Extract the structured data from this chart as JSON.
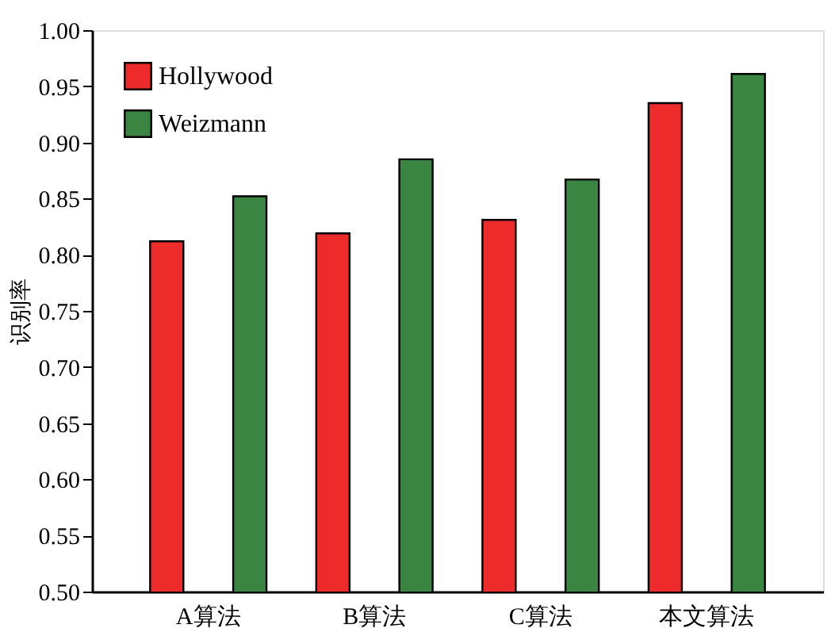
{
  "chart_data": {
    "type": "bar",
    "ylabel": "识别率",
    "categories": [
      "A算法",
      "B算法",
      "C算法",
      "本文算法"
    ],
    "series": [
      {
        "name": "Hollywood",
        "color": "#ee2b2b",
        "values": [
          0.812,
          0.819,
          0.831,
          0.935
        ]
      },
      {
        "name": "Weizmann",
        "color": "#3a8541",
        "values": [
          0.852,
          0.885,
          0.867,
          0.961
        ]
      }
    ],
    "ylim": [
      0.5,
      1.0
    ],
    "yticks": [
      {
        "value": 0.5,
        "label": "0.50"
      },
      0.55,
      {
        "value": 0.6,
        "label": "0.60"
      },
      0.65,
      {
        "value": 0.7,
        "label": "0.70"
      },
      0.75,
      {
        "value": 0.8,
        "label": "0.80"
      },
      0.85,
      {
        "value": 0.9,
        "label": "0.90"
      },
      0.95,
      {
        "value": 1.0,
        "label": "1.00"
      }
    ],
    "grid": false,
    "legend": "top left"
  }
}
